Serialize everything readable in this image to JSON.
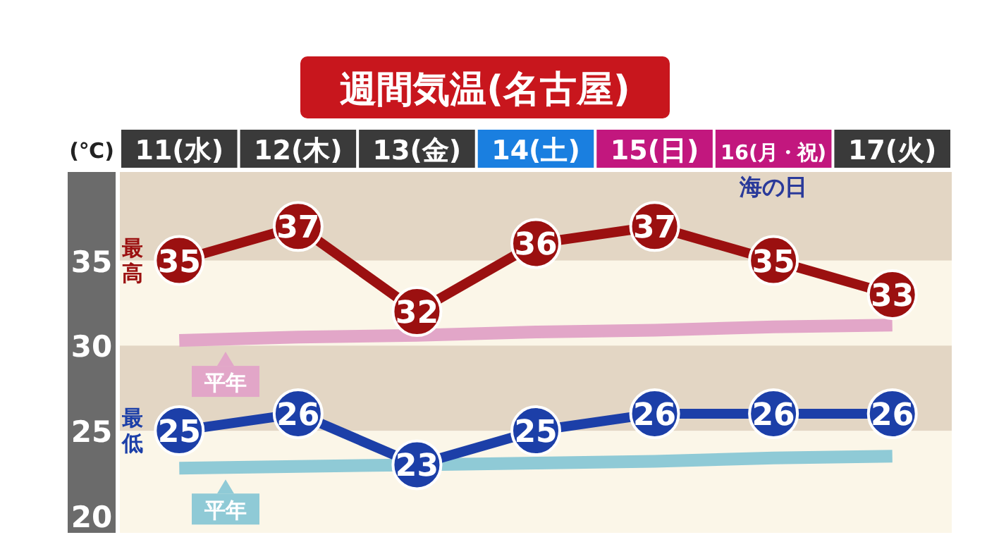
{
  "chart_data": {
    "type": "line",
    "title": "週間気温(名古屋)",
    "ylabel": "(℃)",
    "categories": [
      "11(水)",
      "12(木)",
      "13(金)",
      "14(土)",
      "15(日)",
      "16(月・祝)",
      "17(火)"
    ],
    "ylim": [
      19,
      40.2
    ],
    "yticks": [
      20,
      25,
      30,
      35
    ],
    "grid": false,
    "legend": "left",
    "marker": "circle",
    "line_style": "solid",
    "bands": [
      {
        "axis": "y",
        "from": 35,
        "to": 40.2,
        "color": "#e3d6c4"
      },
      {
        "axis": "y",
        "from": 25,
        "to": 30,
        "color": "#e3d6c4"
      }
    ],
    "series": [
      {
        "name": "最高",
        "color": "#9b1010",
        "values": [
          35,
          37,
          32,
          36,
          37,
          35,
          33
        ],
        "value_labels": [
          "35",
          "37",
          "32",
          "36",
          "37",
          "35",
          "33"
        ]
      },
      {
        "name": "最低",
        "color": "#1c3fa8",
        "values": [
          25,
          26,
          23,
          25,
          26,
          26,
          26
        ],
        "value_labels": [
          "25",
          "26",
          "23",
          "25",
          "26",
          "26",
          "26"
        ]
      },
      {
        "name": "平年",
        "color": "#e2a6c8",
        "marker": "none",
        "values": [
          30.3,
          30.5,
          30.6,
          30.8,
          30.9,
          31.1,
          31.2
        ]
      },
      {
        "name": "平年",
        "color": "#8fcad6",
        "marker": "none",
        "values": [
          22.8,
          22.9,
          23.0,
          23.1,
          23.2,
          23.4,
          23.5
        ]
      }
    ],
    "annotations": [
      "海の日"
    ]
  }
}
